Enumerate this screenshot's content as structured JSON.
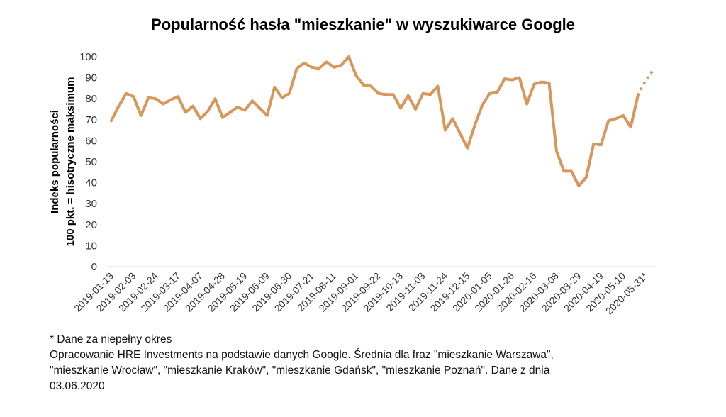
{
  "chart_data": {
    "type": "line",
    "title": "Popularność hasła \"mieszkanie\" w wyszukiwarce Google",
    "ylabel_line1": "Indeks popularności",
    "ylabel_line2": "100 pkt. = hisotryczne maksimum",
    "ylim": [
      0,
      100
    ],
    "yticks": [
      0,
      10,
      20,
      30,
      40,
      50,
      60,
      70,
      80,
      90,
      100
    ],
    "grid": false,
    "color": "#D9965B",
    "x_tick_labels": [
      "2019-01-13",
      "2019-02-03",
      "2019-02-24",
      "2019-03-17",
      "2019-04-07",
      "2019-04-28",
      "2019-05-19",
      "2019-06-09",
      "2019-06-30",
      "2019-07-21",
      "2019-08-11",
      "2019-09-01",
      "2019-09-22",
      "2019-10-13",
      "2019-11-03",
      "2019-11-24",
      "2019-12-15",
      "2020-01-05",
      "2020-01-26",
      "2020-02-16",
      "2020-03-08",
      "2020-03-29",
      "2020-04-19",
      "2020-05-10",
      "2020-05-31*"
    ],
    "series": [
      {
        "values": [
          69.5,
          76.5,
          82.5,
          81,
          72,
          80.5,
          80,
          77.5,
          79.5,
          81,
          73.5,
          76.5,
          70.5,
          74,
          80,
          71,
          73.5,
          76,
          74.5,
          79,
          75.5,
          72,
          85.5,
          80.5,
          82.5,
          94.5,
          97,
          95,
          94.5,
          97.5,
          95,
          96,
          100,
          91,
          86.5,
          86,
          82.5,
          82,
          82,
          75.5,
          81.5,
          75,
          82.5,
          82,
          86,
          65,
          70.5,
          63.5,
          56.5,
          67.5,
          77,
          82.5,
          83,
          89.5,
          89,
          90,
          77.5,
          87,
          88,
          87.5,
          55,
          45.5,
          45.5,
          38.5,
          42.5,
          58.5,
          58,
          69.5,
          70.5,
          72,
          66.5,
          82,
          88.5,
          93.5
        ]
      }
    ],
    "partial_from_index": 71
  },
  "notes": {
    "line1": "* Dane za niepełny okres",
    "line2": "Opracowanie HRE Investments na podstawie danych Google. Średnia dla fraz \"mieszkanie Warszawa\",",
    "line3": "\"mieszkanie Wrocław\", \"mieszkanie Kraków\", \"mieszkanie Gdańsk\", \"mieszkanie Poznań\". Dane z dnia",
    "line4": "03.06.2020"
  }
}
